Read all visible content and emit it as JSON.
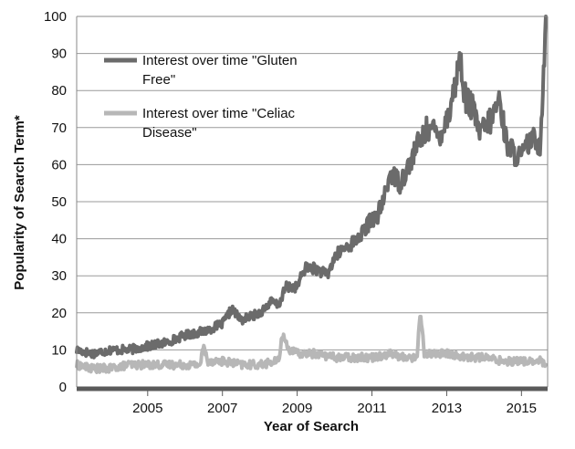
{
  "chart_data": {
    "type": "line",
    "title": "",
    "xlabel": "Year of Search",
    "ylabel": "Popularity of Search Term*",
    "xlim": [
      2003.1,
      2015.7
    ],
    "ylim": [
      0,
      100
    ],
    "y_ticks": [
      0,
      10,
      20,
      30,
      40,
      50,
      60,
      70,
      80,
      90,
      100
    ],
    "x_ticks": [
      2005,
      2007,
      2009,
      2011,
      2013,
      2015
    ],
    "y_tick_labels": [
      "0",
      "10",
      "20",
      "30",
      "40",
      "50",
      "60",
      "70",
      "80",
      "90",
      "100"
    ],
    "x_tick_labels": [
      "2005",
      "2007",
      "2009",
      "2011",
      "2013",
      "2015"
    ],
    "grid": "horizontal",
    "legend_position": "top-left",
    "legend": [
      {
        "line1": "Interest over time \"Gluten",
        "line2": "Free\"",
        "color": "#6b6b6b"
      },
      {
        "line1": "Interest over time \"Celiac",
        "line2": "Disease\"",
        "color": "#b7b7b7"
      }
    ],
    "series": [
      {
        "name": "Interest over time \"Gluten Free\"",
        "color": "#6b6b6b",
        "x": [
          2003.1,
          2003.5,
          2004.0,
          2004.5,
          2005.0,
          2005.5,
          2006.0,
          2006.5,
          2007.0,
          2007.25,
          2007.5,
          2008.0,
          2008.3,
          2008.5,
          2008.7,
          2009.0,
          2009.2,
          2009.5,
          2009.8,
          2010.0,
          2010.2,
          2010.5,
          2010.8,
          2011.0,
          2011.1,
          2011.3,
          2011.5,
          2011.75,
          2012.0,
          2012.2,
          2012.5,
          2012.8,
          2013.0,
          2013.2,
          2013.35,
          2013.5,
          2013.7,
          2013.9,
          2014.0,
          2014.2,
          2014.4,
          2014.6,
          2014.8,
          2015.0,
          2015.2,
          2015.4,
          2015.5,
          2015.58,
          2015.65
        ],
        "values": [
          10,
          9,
          10,
          10,
          11,
          12,
          14,
          15,
          17,
          21,
          18,
          20,
          23,
          22,
          27,
          27,
          32,
          32,
          30,
          35,
          37,
          39,
          42,
          46,
          45,
          50,
          58,
          55,
          60,
          65,
          70,
          68,
          72,
          80,
          89,
          78,
          75,
          68,
          70,
          72,
          78,
          66,
          63,
          62,
          66,
          67,
          65,
          82,
          100
        ]
      },
      {
        "name": "Interest over time \"Celiac Disease\"",
        "color": "#b7b7b7",
        "x": [
          2003.1,
          2003.5,
          2004.0,
          2004.5,
          2005.0,
          2005.5,
          2006.0,
          2006.4,
          2006.5,
          2006.6,
          2007.0,
          2007.5,
          2008.0,
          2008.5,
          2008.6,
          2008.8,
          2009.0,
          2009.5,
          2010.0,
          2010.5,
          2011.0,
          2011.5,
          2011.8,
          2012.0,
          2012.2,
          2012.3,
          2012.4,
          2012.8,
          2013.0,
          2013.5,
          2014.0,
          2014.5,
          2015.0,
          2015.3,
          2015.5,
          2015.65
        ],
        "values": [
          6,
          5,
          5,
          6,
          6,
          6,
          6,
          6,
          11,
          7,
          7,
          6,
          6,
          7,
          14,
          10,
          9,
          9,
          8,
          8,
          8,
          9,
          8,
          8,
          8,
          20,
          9,
          9,
          9,
          8,
          8,
          7,
          7,
          7,
          7,
          6
        ]
      }
    ]
  }
}
